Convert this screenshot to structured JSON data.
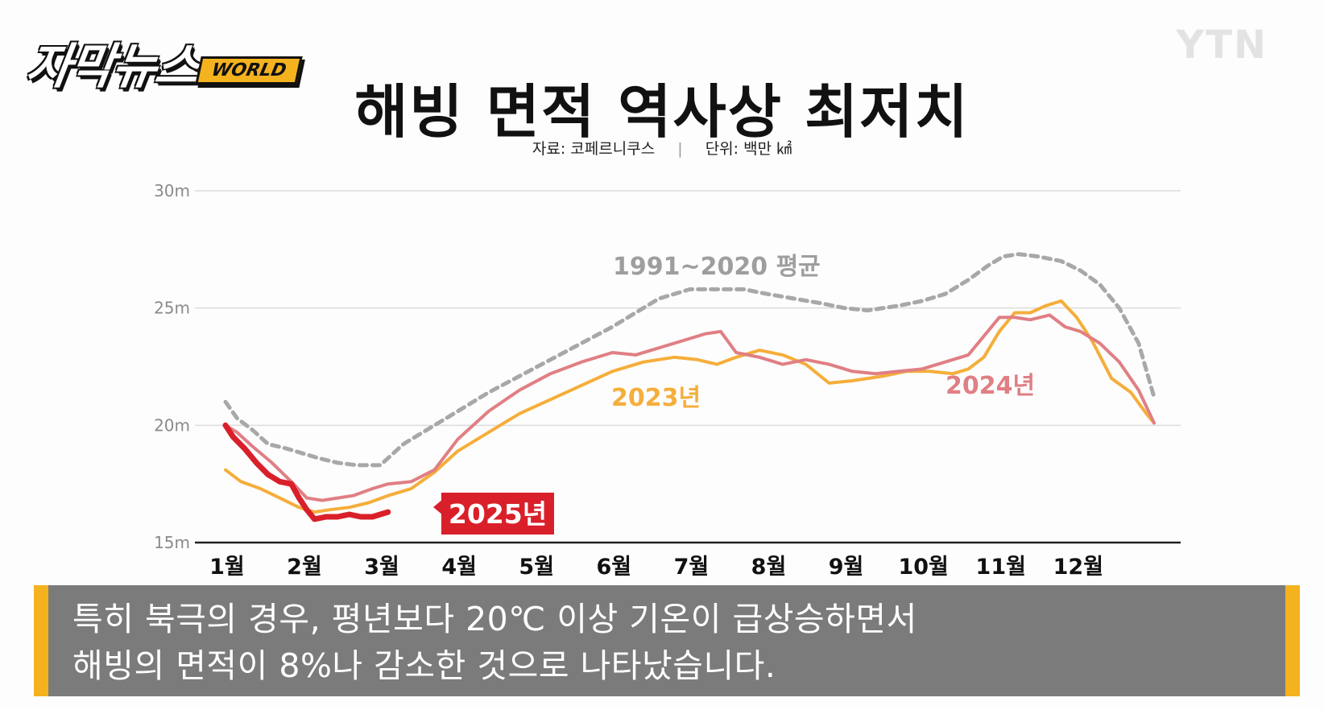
{
  "branding": {
    "program": "자막뉴스",
    "program_tag": "WORLD",
    "channel": "YTN"
  },
  "caption": {
    "line1": "특히 북극의 경우, 평년보다 20℃ 이상 기온이 급상승하면서",
    "line2": "해빙의 면적이 8%나 감소한 것으로 나타났습니다."
  },
  "colors": {
    "avg": "#a8a8a8",
    "y2023": "#f5ae3b",
    "y2024": "#e07f84",
    "y2025": "#d9202a"
  },
  "chart_data": {
    "type": "line",
    "title": "해빙 면적 역사상 최저치",
    "source": "자료: 코페르니쿠스",
    "unit": "단위: 백만 ㎢",
    "x_unit": "month",
    "xlim": [
      1,
      13
    ],
    "categories": [
      "1월",
      "2월",
      "3월",
      "4월",
      "5월",
      "6월",
      "7월",
      "8월",
      "9월",
      "10월",
      "11월",
      "12월"
    ],
    "ylim": [
      15,
      30
    ],
    "yticks": [
      15,
      20,
      25,
      30
    ],
    "ytick_labels": [
      "15m",
      "20m",
      "25m",
      "30m"
    ],
    "grid": true,
    "series": [
      {
        "name": "1991~2020 평균",
        "style": "dashed",
        "x": [
          1,
          1.15,
          1.35,
          1.55,
          1.8,
          2.0,
          2.2,
          2.45,
          2.7,
          3.0,
          3.3,
          3.6,
          4.0,
          4.4,
          4.8,
          5.2,
          5.6,
          6.0,
          6.3,
          6.6,
          7.0,
          7.35,
          7.7,
          8.0,
          8.35,
          8.7,
          9.0,
          9.3,
          9.7,
          10.0,
          10.3,
          10.6,
          10.85,
          11.05,
          11.25,
          11.5,
          11.8,
          12.05,
          12.3,
          12.55,
          12.8,
          13.0
        ],
        "values": [
          21.0,
          20.3,
          19.8,
          19.2,
          19.0,
          18.8,
          18.6,
          18.4,
          18.3,
          18.3,
          19.2,
          19.8,
          20.6,
          21.4,
          22.1,
          22.8,
          23.5,
          24.2,
          24.8,
          25.4,
          25.8,
          25.8,
          25.8,
          25.6,
          25.4,
          25.2,
          25.0,
          24.9,
          25.1,
          25.3,
          25.6,
          26.2,
          26.8,
          27.2,
          27.3,
          27.2,
          27.0,
          26.6,
          26.0,
          25.0,
          23.5,
          21.2
        ]
      },
      {
        "name": "2023년",
        "style": "solid",
        "x": [
          1,
          1.2,
          1.45,
          1.7,
          1.95,
          2.15,
          2.35,
          2.6,
          2.85,
          3.1,
          3.4,
          3.7,
          4.0,
          4.4,
          4.8,
          5.2,
          5.6,
          6.0,
          6.4,
          6.8,
          7.1,
          7.35,
          7.6,
          7.9,
          8.2,
          8.5,
          8.8,
          9.1,
          9.5,
          9.8,
          10.1,
          10.4,
          10.6,
          10.8,
          11.0,
          11.2,
          11.4,
          11.6,
          11.8,
          12.0,
          12.2,
          12.45,
          12.7,
          12.9,
          13.0
        ],
        "values": [
          18.1,
          17.6,
          17.3,
          16.9,
          16.5,
          16.3,
          16.4,
          16.5,
          16.7,
          17.0,
          17.3,
          18.0,
          18.9,
          19.7,
          20.5,
          21.1,
          21.7,
          22.3,
          22.7,
          22.9,
          22.8,
          22.6,
          22.9,
          23.2,
          23.0,
          22.6,
          21.8,
          21.9,
          22.1,
          22.3,
          22.3,
          22.2,
          22.4,
          22.9,
          24.0,
          24.8,
          24.8,
          25.1,
          25.3,
          24.6,
          23.6,
          22.0,
          21.4,
          20.5,
          20.1
        ]
      },
      {
        "name": "2024년",
        "style": "solid",
        "x": [
          1,
          1.15,
          1.35,
          1.6,
          1.85,
          2.05,
          2.25,
          2.45,
          2.65,
          2.9,
          3.1,
          3.4,
          3.7,
          4.0,
          4.4,
          4.8,
          5.2,
          5.6,
          6.0,
          6.3,
          6.6,
          6.9,
          7.2,
          7.4,
          7.6,
          7.9,
          8.2,
          8.5,
          8.8,
          9.1,
          9.4,
          9.7,
          10.0,
          10.3,
          10.6,
          10.8,
          11.0,
          11.2,
          11.4,
          11.65,
          11.85,
          12.05,
          12.3,
          12.55,
          12.8,
          13.0
        ],
        "values": [
          20.0,
          19.7,
          19.1,
          18.4,
          17.6,
          16.9,
          16.8,
          16.9,
          17.0,
          17.3,
          17.5,
          17.6,
          18.1,
          19.4,
          20.6,
          21.5,
          22.2,
          22.7,
          23.1,
          23.0,
          23.3,
          23.6,
          23.9,
          24.0,
          23.1,
          22.9,
          22.6,
          22.8,
          22.6,
          22.3,
          22.2,
          22.3,
          22.4,
          22.7,
          23.0,
          23.8,
          24.6,
          24.6,
          24.5,
          24.7,
          24.2,
          24.0,
          23.5,
          22.7,
          21.5,
          20.1
        ]
      },
      {
        "name": "2025년",
        "style": "solid-thick",
        "x": [
          1.0,
          1.1,
          1.25,
          1.4,
          1.55,
          1.7,
          1.85,
          1.95,
          2.05,
          2.15,
          2.3,
          2.45,
          2.6,
          2.75,
          2.9,
          3.0,
          3.1
        ],
        "values": [
          20.0,
          19.5,
          19.0,
          18.4,
          17.9,
          17.6,
          17.5,
          16.9,
          16.4,
          16.0,
          16.1,
          16.1,
          16.2,
          16.1,
          16.1,
          16.2,
          16.3
        ]
      }
    ],
    "annotations": [
      {
        "text": "1991~2020 평균",
        "series": "1991~2020 평균"
      },
      {
        "text": "2023년",
        "series": "2023년"
      },
      {
        "text": "2024년",
        "series": "2024년"
      },
      {
        "text": "2025년",
        "series": "2025년",
        "boxed": true
      }
    ]
  }
}
